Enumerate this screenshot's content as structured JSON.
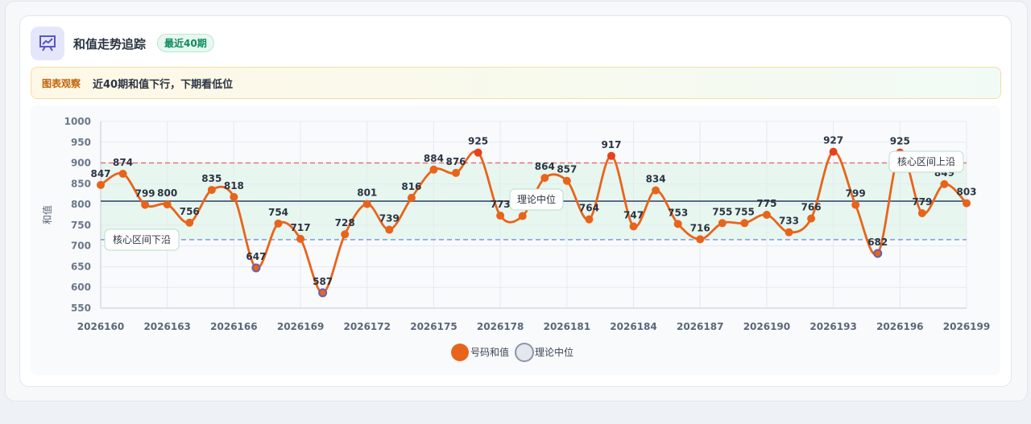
{
  "header": {
    "title": "和值走势追踪",
    "badge": "最近40期"
  },
  "observation": {
    "label": "图表观察",
    "text": "近40期和值下行，下期看低位"
  },
  "chart_data": {
    "type": "line",
    "y_label": "和值",
    "categories": [
      "2026160",
      null,
      null,
      "2026163",
      null,
      null,
      "2026166",
      null,
      null,
      "2026169",
      null,
      null,
      "2026172",
      null,
      null,
      "2026175",
      null,
      null,
      "2026178",
      null,
      null,
      "2026181",
      null,
      null,
      "2026184",
      null,
      null,
      "2026187",
      null,
      null,
      "2026190",
      null,
      null,
      "2026193",
      null,
      null,
      "2026196",
      null,
      null,
      "2026199"
    ],
    "series": [
      {
        "name": "号码和值",
        "color": "#e8641b",
        "high_color": "#e8401b",
        "low_color": "#6b5fb0",
        "values": [
          847,
          874,
          799,
          800,
          756,
          835,
          818,
          647,
          754,
          717,
          587,
          728,
          801,
          739,
          816,
          884,
          876,
          925,
          773,
          772,
          864,
          857,
          764,
          917,
          747,
          834,
          753,
          716,
          755,
          755,
          775,
          733,
          766,
          927,
          799,
          682,
          925,
          779,
          849,
          803
        ]
      }
    ],
    "reference_lines": [
      {
        "value": 900,
        "label": "核心区间上沿",
        "color": "#e57373",
        "dashed": true
      },
      {
        "value": 808,
        "label": "理论中位",
        "color": "#5a6b85",
        "dashed": false
      },
      {
        "value": 715,
        "label": "核心区间下沿",
        "color": "#7a9be0",
        "dashed": true
      }
    ],
    "band_color": "#dff3ea",
    "ylim": [
      550,
      1000
    ],
    "yticks": [
      550,
      600,
      650,
      700,
      750,
      800,
      850,
      900,
      950,
      1000
    ],
    "grid": true
  }
}
